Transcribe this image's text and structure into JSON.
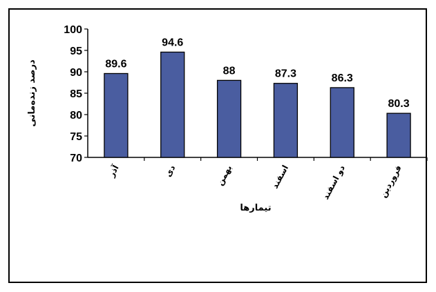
{
  "chart_data": {
    "type": "bar",
    "categories": [
      "آذر",
      "دی",
      "بهمن",
      "اسفند",
      "دو اسفند",
      "فروردین"
    ],
    "values": [
      89.6,
      94.6,
      88,
      87.3,
      86.3,
      80.3
    ],
    "value_labels": [
      "89.6",
      "94.6",
      "88",
      "87.3",
      "86.3",
      "80.3"
    ],
    "title": "",
    "xlabel": "تیمارها",
    "ylabel": "درصد زنده‌مانی",
    "ylim": [
      70,
      100
    ],
    "yticks": [
      100,
      95,
      90,
      85,
      80,
      75,
      70
    ],
    "grid": false,
    "legend": "none",
    "bar_color": "#4a5da0",
    "bar_stroke": "#000000"
  }
}
